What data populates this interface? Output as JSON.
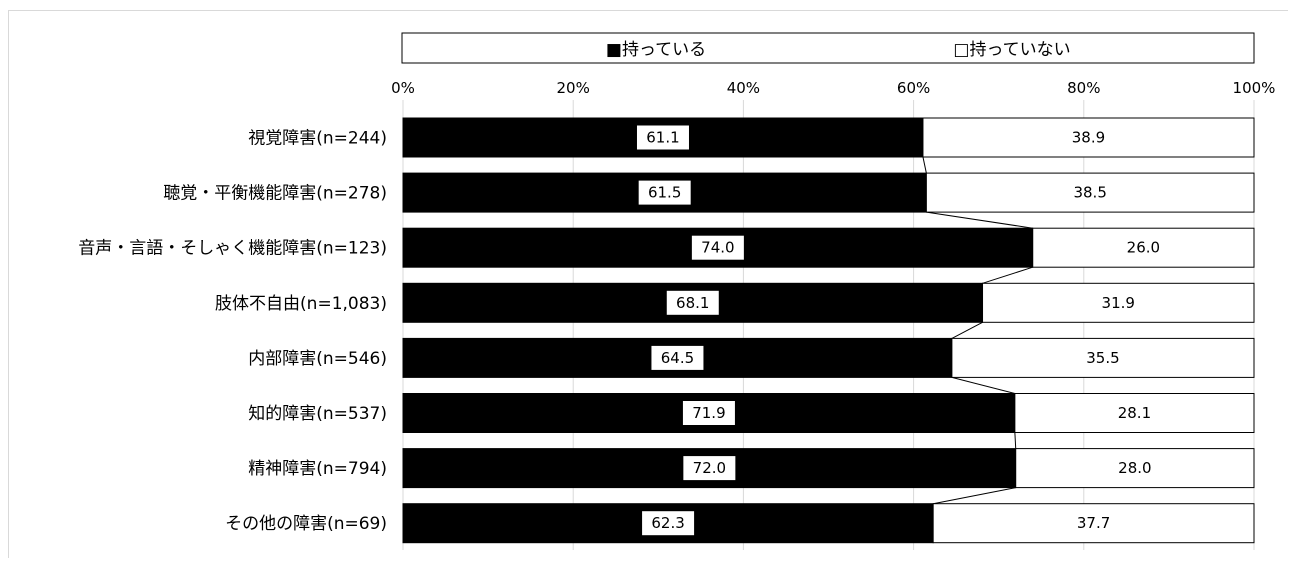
{
  "chart_data": {
    "type": "bar",
    "orientation": "horizontal",
    "stacked": true,
    "categories": [
      "視覚障害(n=244)",
      "聴覚・平衡機能障害(n=278)",
      "音声・言語・そしゃく機能障害(n=123)",
      "肢体不自由(n=1,083)",
      "内部障害(n=546)",
      "知的障害(n=537)",
      "精神障害(n=794)",
      "その他の障害(n=69)"
    ],
    "series": [
      {
        "name": "持っている",
        "color": "#000000",
        "values": [
          61.1,
          61.5,
          74.0,
          68.1,
          64.5,
          71.9,
          72.0,
          62.3
        ],
        "labels": [
          "61.1",
          "61.5",
          "74.0",
          "68.1",
          "64.5",
          "71.9",
          "72.0",
          "62.3"
        ]
      },
      {
        "name": "持っていない",
        "color": "#ffffff",
        "values": [
          38.9,
          38.5,
          26.0,
          31.9,
          35.5,
          28.1,
          28.0,
          37.7
        ],
        "labels": [
          "38.9",
          "38.5",
          "26.0",
          "31.9",
          "35.5",
          "28.1",
          "28.0",
          "37.7"
        ]
      }
    ],
    "xticks": [
      "0%",
      "20%",
      "40%",
      "60%",
      "80%",
      "100%"
    ],
    "xlim": [
      0,
      100
    ],
    "legend": {
      "placement": "top",
      "entries": [
        "■持っている",
        "□持っていない"
      ]
    },
    "series_lines": true,
    "grid": true
  }
}
